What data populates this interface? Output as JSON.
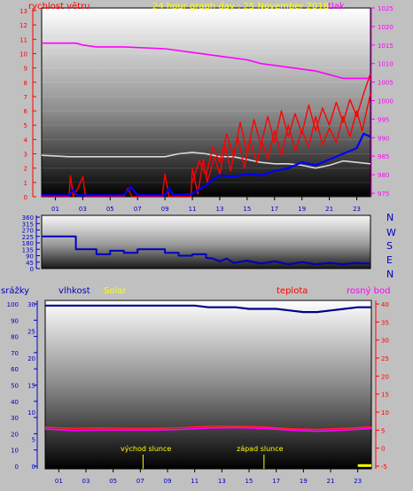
{
  "header": {
    "left_label": "rychlost větru",
    "title": "24 hour graph day : 25 November 2018",
    "right_label": "tlak"
  },
  "colors": {
    "wind": "#ff0000",
    "gust": "#ff0000",
    "wind_avg": "#0000ff",
    "pressure": "#ff00ff",
    "temperature_top": "#d8d8d8",
    "direction": "#0000c0",
    "humidity": "#00008b",
    "temperature": "#ff2020",
    "dewpoint": "#ff00ff",
    "solar": "#ffff00",
    "left_axis": "#ff0000",
    "right_axis": "#ff00ff",
    "blue_axis": "#0000c0"
  },
  "compass": [
    "N",
    "W",
    "S",
    "E",
    "N"
  ],
  "bottom_header": {
    "rain": "srážky",
    "humidity": "vlhkost",
    "solar": "Solar",
    "temperature": "teplota",
    "dewpoint": "rosný bod"
  },
  "annotations": {
    "sunrise": "východ slunce",
    "sunset": "západ slunce"
  },
  "chart_data": [
    {
      "type": "line",
      "x_ticks": [
        "01",
        "03",
        "05",
        "07",
        "09",
        "11",
        "13",
        "15",
        "17",
        "19",
        "21",
        "23"
      ],
      "x_range": [
        0,
        24
      ],
      "y_left": {
        "ticks": [
          "0",
          "1",
          "2",
          "3",
          "4",
          "5",
          "6",
          "7",
          "8",
          "9",
          "10",
          "11",
          "12",
          "13"
        ],
        "ylim": [
          0,
          13
        ]
      },
      "y_right": {
        "ticks": [
          "975",
          "980",
          "985",
          "990",
          "995",
          "1000",
          "1005",
          "1010",
          "1015",
          "1020",
          "1025"
        ],
        "ylim": [
          975,
          1025
        ]
      },
      "series": [
        {
          "key": "pressure",
          "axis": "right",
          "points": [
            [
              0,
              1015.5
            ],
            [
              2.5,
              1015.5
            ],
            [
              3,
              1015
            ],
            [
              4,
              1014.5
            ],
            [
              6,
              1014.5
            ],
            [
              9,
              1014
            ],
            [
              11,
              1013
            ],
            [
              15,
              1011
            ],
            [
              16,
              1010
            ],
            [
              18,
              1009
            ],
            [
              20,
              1008
            ],
            [
              21,
              1007
            ],
            [
              22,
              1006
            ],
            [
              24,
              1006
            ]
          ]
        },
        {
          "key": "temperature_top",
          "axis": "left",
          "points": [
            [
              0,
              2.9
            ],
            [
              2,
              2.8
            ],
            [
              4,
              2.8
            ],
            [
              6,
              2.8
            ],
            [
              8,
              2.8
            ],
            [
              9,
              2.8
            ],
            [
              10,
              3.0
            ],
            [
              11,
              3.1
            ],
            [
              12,
              3.0
            ],
            [
              13,
              2.8
            ],
            [
              14,
              2.8
            ],
            [
              15,
              2.6
            ],
            [
              16,
              2.4
            ],
            [
              17,
              2.3
            ],
            [
              18,
              2.3
            ],
            [
              19,
              2.2
            ],
            [
              20,
              2.0
            ],
            [
              21,
              2.2
            ],
            [
              22,
              2.5
            ],
            [
              23,
              2.4
            ],
            [
              24,
              2.3
            ]
          ]
        },
        {
          "key": "wind_avg",
          "axis": "left",
          "points": [
            [
              0,
              0.1
            ],
            [
              2,
              0.1
            ],
            [
              2.3,
              0.5
            ],
            [
              2.6,
              0.1
            ],
            [
              4,
              0.1
            ],
            [
              6,
              0.1
            ],
            [
              6.5,
              0.7
            ],
            [
              7,
              0.1
            ],
            [
              9,
              0.1
            ],
            [
              9.3,
              0.6
            ],
            [
              9.6,
              0.1
            ],
            [
              11,
              0.2
            ],
            [
              12,
              0.8
            ],
            [
              12.5,
              1.2
            ],
            [
              13,
              1.5
            ],
            [
              14,
              1.4
            ],
            [
              15,
              1.6
            ],
            [
              16,
              1.5
            ],
            [
              17,
              1.8
            ],
            [
              18,
              2.0
            ],
            [
              19,
              2.4
            ],
            [
              20,
              2.2
            ],
            [
              21,
              2.6
            ],
            [
              22,
              3.0
            ],
            [
              23,
              3.4
            ],
            [
              23.5,
              4.4
            ],
            [
              24,
              4.2
            ]
          ]
        },
        {
          "key": "wind",
          "axis": "left",
          "points": [
            [
              0,
              0
            ],
            [
              2,
              0
            ],
            [
              2.1,
              1.5
            ],
            [
              2.3,
              0
            ],
            [
              2.6,
              0.5
            ],
            [
              3,
              1.4
            ],
            [
              3.2,
              0
            ],
            [
              6,
              0
            ],
            [
              6.3,
              0.6
            ],
            [
              6.6,
              0
            ],
            [
              8.8,
              0
            ],
            [
              9,
              1.6
            ],
            [
              9.3,
              0
            ],
            [
              10.9,
              0
            ],
            [
              11,
              2.0
            ],
            [
              11.4,
              0.2
            ],
            [
              11.8,
              2.6
            ],
            [
              12.1,
              1.0
            ],
            [
              12.6,
              2.8
            ],
            [
              13,
              1.6
            ],
            [
              13.4,
              3.6
            ],
            [
              13.8,
              1.8
            ],
            [
              14.3,
              4.2
            ],
            [
              14.8,
              2.0
            ],
            [
              15.2,
              4.0
            ],
            [
              15.7,
              2.4
            ],
            [
              16.1,
              3.8
            ],
            [
              16.5,
              2.6
            ],
            [
              17,
              4.6
            ],
            [
              17.5,
              2.9
            ],
            [
              18,
              5.0
            ],
            [
              18.5,
              3.2
            ],
            [
              19,
              4.6
            ],
            [
              19.5,
              3.5
            ],
            [
              20,
              5.6
            ],
            [
              20.5,
              3.6
            ],
            [
              21,
              4.8
            ],
            [
              21.5,
              3.8
            ],
            [
              22,
              5.6
            ],
            [
              22.5,
              4.2
            ],
            [
              23,
              6.0
            ],
            [
              23.4,
              4.6
            ],
            [
              24,
              7.2
            ]
          ]
        },
        {
          "key": "gust",
          "axis": "left",
          "points": [
            [
              11,
              1
            ],
            [
              11.5,
              2.5
            ],
            [
              12,
              1.5
            ],
            [
              12.5,
              3.5
            ],
            [
              13,
              2.4
            ],
            [
              13.5,
              4.4
            ],
            [
              14,
              2.8
            ],
            [
              14.5,
              5.2
            ],
            [
              15,
              3.0
            ],
            [
              15.5,
              5.4
            ],
            [
              16,
              3.6
            ],
            [
              16.5,
              5.6
            ],
            [
              17,
              3.8
            ],
            [
              17.5,
              6.0
            ],
            [
              18,
              4.2
            ],
            [
              18.5,
              5.8
            ],
            [
              19,
              4.4
            ],
            [
              19.5,
              6.4
            ],
            [
              20,
              4.6
            ],
            [
              20.5,
              6.2
            ],
            [
              21,
              5.0
            ],
            [
              21.5,
              6.6
            ],
            [
              22,
              5.2
            ],
            [
              22.5,
              6.8
            ],
            [
              23,
              5.6
            ],
            [
              23.5,
              7.2
            ],
            [
              24,
              8.6
            ]
          ]
        }
      ]
    },
    {
      "type": "line",
      "y_ticks": [
        "0",
        "45",
        "90",
        "135",
        "180",
        "225",
        "270",
        "315",
        "360"
      ],
      "ylim": [
        0,
        360
      ],
      "series": [
        {
          "key": "direction",
          "points": [
            [
              0,
              225
            ],
            [
              2.5,
              225
            ],
            [
              2.5,
              135
            ],
            [
              4,
              135
            ],
            [
              4,
              100
            ],
            [
              5,
              100
            ],
            [
              5,
              125
            ],
            [
              6,
              125
            ],
            [
              6,
              110
            ],
            [
              7,
              110
            ],
            [
              7,
              135
            ],
            [
              9,
              135
            ],
            [
              9,
              110
            ],
            [
              10,
              110
            ],
            [
              10,
              90
            ],
            [
              11,
              90
            ],
            [
              11,
              100
            ],
            [
              12,
              100
            ],
            [
              12,
              75
            ],
            [
              12.5,
              70
            ],
            [
              13,
              50
            ],
            [
              13.5,
              70
            ],
            [
              14,
              40
            ],
            [
              15,
              55
            ],
            [
              16,
              35
            ],
            [
              17,
              50
            ],
            [
              18,
              30
            ],
            [
              19,
              45
            ],
            [
              20,
              30
            ],
            [
              21,
              40
            ],
            [
              22,
              30
            ],
            [
              23,
              40
            ],
            [
              24,
              35
            ]
          ]
        }
      ]
    },
    {
      "type": "line",
      "y_left_humidity": {
        "ticks": [
          "0",
          "10",
          "20",
          "30",
          "40",
          "50",
          "60",
          "70",
          "80",
          "90",
          "100"
        ],
        "ylim": [
          0,
          100
        ]
      },
      "y_left_rain": {
        "ticks": [
          "0",
          "5",
          "10",
          "15",
          "20",
          "25",
          "30"
        ],
        "ylim": [
          0,
          30
        ]
      },
      "y_right_temperature": {
        "ticks": [
          "-5",
          "0",
          "5",
          "10",
          "15",
          "20",
          "25",
          "30",
          "35",
          "40"
        ],
        "ylim": [
          -5,
          40
        ]
      },
      "series": [
        {
          "key": "humidity",
          "axis": "humidity",
          "points": [
            [
              0,
              99
            ],
            [
              9,
              99
            ],
            [
              11,
              99
            ],
            [
              12,
              98
            ],
            [
              14,
              98
            ],
            [
              15,
              97
            ],
            [
              17,
              97
            ],
            [
              18,
              96
            ],
            [
              19,
              95
            ],
            [
              20,
              95
            ],
            [
              21,
              96
            ],
            [
              22,
              97
            ],
            [
              23,
              98
            ],
            [
              24,
              98
            ]
          ]
        },
        {
          "key": "temperature",
          "axis": "temperature",
          "points": [
            [
              0,
              5.8
            ],
            [
              2,
              5.5
            ],
            [
              4,
              5.6
            ],
            [
              6,
              5.5
            ],
            [
              8,
              5.5
            ],
            [
              10,
              5.7
            ],
            [
              12,
              6.1
            ],
            [
              14,
              6.1
            ],
            [
              16,
              5.9
            ],
            [
              18,
              5.4
            ],
            [
              20,
              5.2
            ],
            [
              22,
              5.5
            ],
            [
              24,
              5.9
            ]
          ]
        },
        {
          "key": "dewpoint",
          "axis": "temperature",
          "points": [
            [
              0,
              5.3
            ],
            [
              2,
              4.9
            ],
            [
              4,
              5.0
            ],
            [
              6,
              5.0
            ],
            [
              8,
              5.0
            ],
            [
              10,
              5.2
            ],
            [
              12,
              5.6
            ],
            [
              14,
              5.7
            ],
            [
              16,
              5.5
            ],
            [
              18,
              5.0
            ],
            [
              20,
              4.7
            ],
            [
              22,
              5.0
            ],
            [
              24,
              5.5
            ]
          ]
        },
        {
          "key": "solar",
          "axis": "humidity",
          "points": [
            [
              23,
              0.4
            ],
            [
              24,
              0.4
            ]
          ]
        }
      ],
      "markers": {
        "sunrise_hour": 7.2,
        "sunset_hour": 16.1
      }
    }
  ]
}
